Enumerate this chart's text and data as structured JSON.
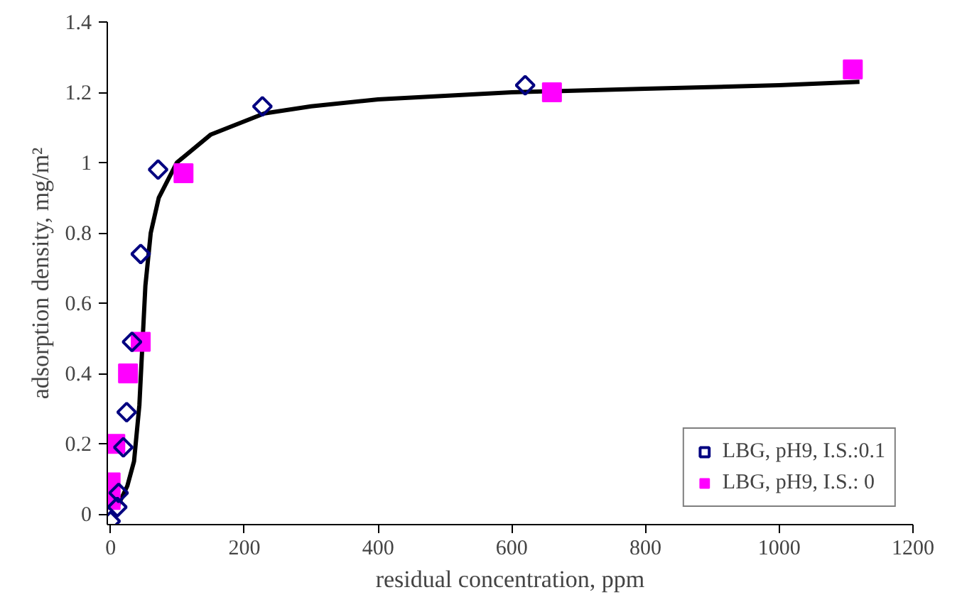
{
  "chart_data": {
    "type": "scatter",
    "xlabel": "residual concentration, ppm",
    "ylabel": "adsorption density, mg/m²",
    "xlim": [
      -5,
      1200
    ],
    "ylim": [
      -0.03,
      1.4
    ],
    "xticks": [
      0,
      200,
      400,
      600,
      800,
      1000,
      1200
    ],
    "yticks": [
      0,
      0.2,
      0.4,
      0.6,
      0.8,
      1,
      1.2,
      1.4
    ],
    "grid": false,
    "legend": "bottom right",
    "series": [
      {
        "name": "LBG, pH9, I.S.:0.1",
        "color": "#000080",
        "marker": "diamond",
        "x": [
          0,
          10,
          12,
          19,
          24,
          32,
          45,
          71,
          227,
          620
        ],
        "values": [
          -0.02,
          0.02,
          0.06,
          0.19,
          0.29,
          0.49,
          0.74,
          0.98,
          1.16,
          1.22
        ]
      },
      {
        "name": "LBG, pH9, I.S.: 0",
        "color": "#ff00ff",
        "marker": "square",
        "x": [
          0,
          0,
          7,
          26,
          45,
          109,
          660,
          1110
        ],
        "values": [
          0.04,
          0.09,
          0.2,
          0.4,
          0.49,
          0.97,
          1.2,
          1.265
        ]
      },
      {
        "type": "line",
        "color": "#000000",
        "x": [
          10,
          25,
          35,
          43,
          48,
          52,
          60,
          72,
          99,
          150,
          230,
          300,
          400,
          600,
          800,
          1000,
          1120
        ],
        "values": [
          0.02,
          0.08,
          0.15,
          0.31,
          0.5,
          0.65,
          0.8,
          0.9,
          1.0,
          1.08,
          1.14,
          1.16,
          1.18,
          1.2,
          1.21,
          1.22,
          1.23
        ]
      }
    ]
  }
}
